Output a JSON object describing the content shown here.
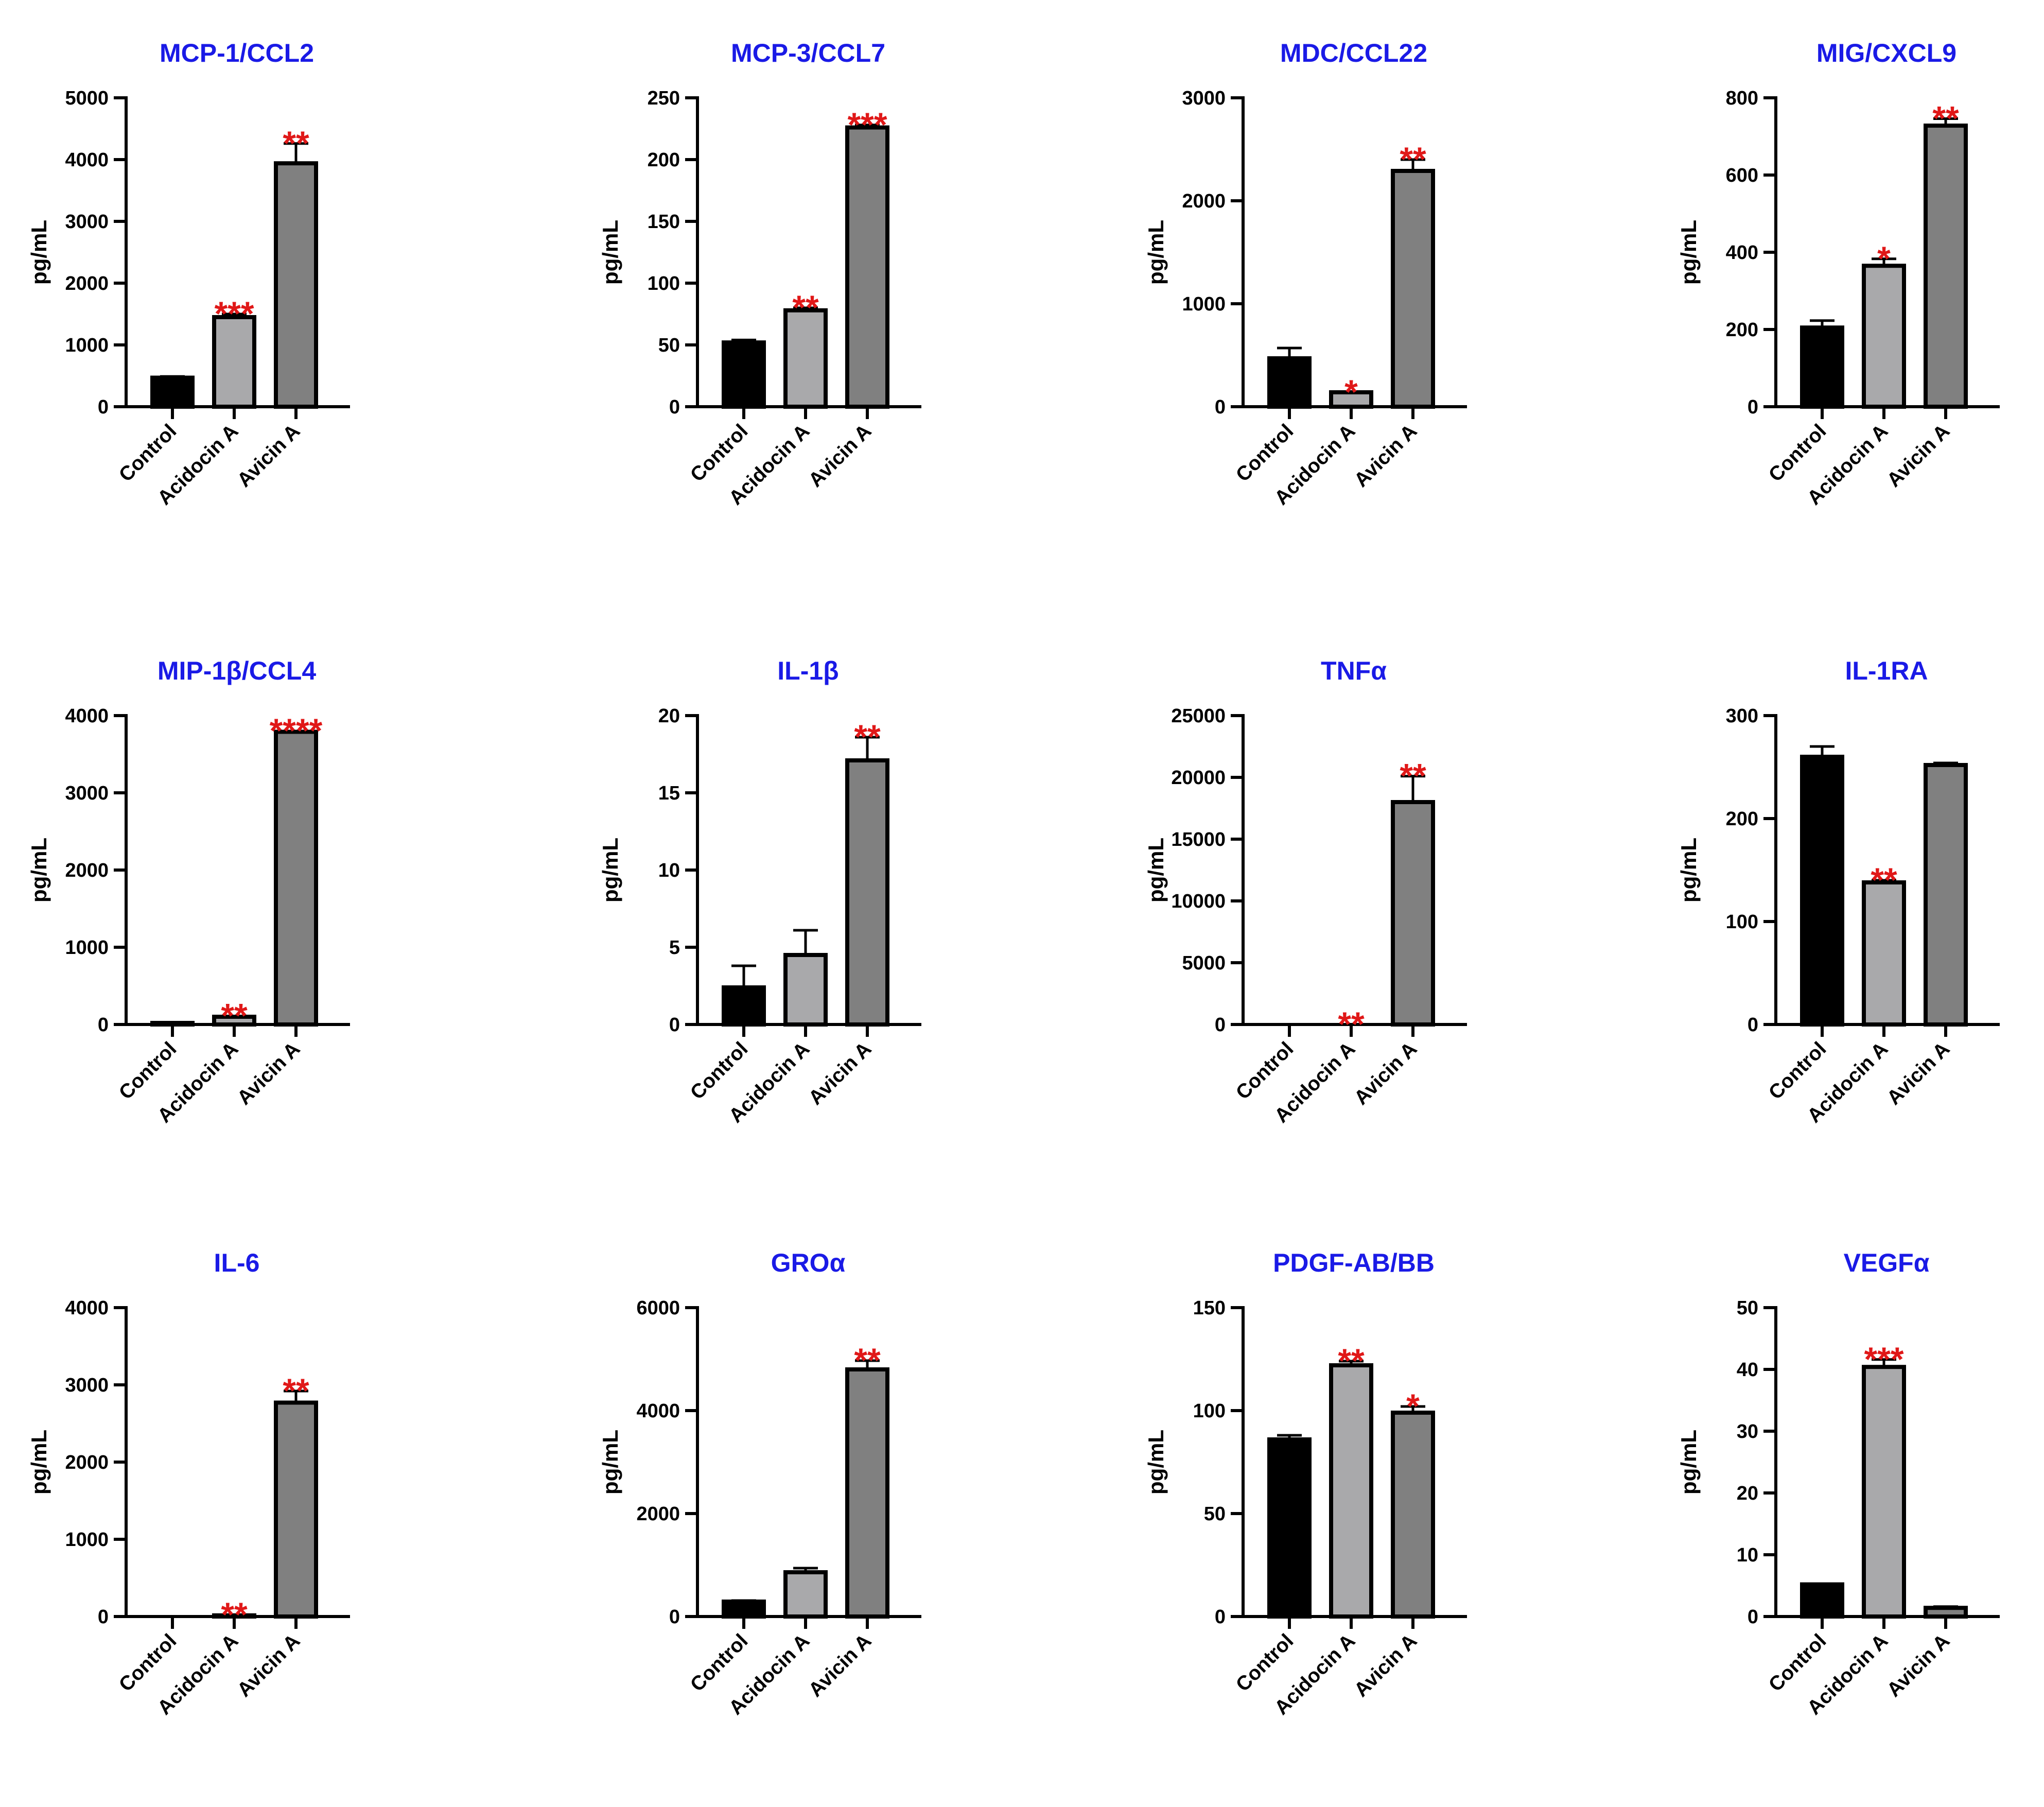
{
  "colors": {
    "title": "#1a1ae6",
    "significance": "#e01818",
    "axis": "#000000",
    "bar_control": "#000000",
    "bar_acidocin": "#a9a9ab",
    "bar_avicin": "#808080"
  },
  "chart_data": [
    {
      "type": "bar",
      "title": "MCP-1/CCL2",
      "ylabel": "pg/mL",
      "categories": [
        "Control",
        "Acidocin A",
        "Avicin A"
      ],
      "values": [
        470,
        1450,
        3940
      ],
      "errors": [
        20,
        50,
        320
      ],
      "significance": [
        "",
        "***",
        "**"
      ],
      "ylim": [
        0,
        5000
      ],
      "yticks": [
        0,
        1000,
        2000,
        3000,
        4000,
        5000
      ]
    },
    {
      "type": "bar",
      "title": "MCP-3/CCL7",
      "ylabel": "pg/mL",
      "categories": [
        "Control",
        "Acidocin A",
        "Avicin A"
      ],
      "values": [
        52,
        78,
        226
      ],
      "errors": [
        2,
        2,
        2
      ],
      "significance": [
        "",
        "**",
        "***"
      ],
      "ylim": [
        0,
        250
      ],
      "yticks": [
        0,
        50,
        100,
        150,
        200,
        250
      ]
    },
    {
      "type": "bar",
      "title": "MDC/CCL22",
      "ylabel": "pg/mL",
      "categories": [
        "Control",
        "Acidocin A",
        "Avicin A"
      ],
      "values": [
        470,
        140,
        2290
      ],
      "errors": [
        100,
        0,
        110
      ],
      "significance": [
        "",
        "*",
        "**"
      ],
      "ylim": [
        0,
        3000
      ],
      "yticks": [
        0,
        1000,
        2000,
        3000
      ]
    },
    {
      "type": "bar",
      "title": "MIG/CXCL9",
      "ylabel": "pg/mL",
      "categories": [
        "Control",
        "Acidocin A",
        "Avicin A"
      ],
      "values": [
        205,
        365,
        728
      ],
      "errors": [
        18,
        18,
        18
      ],
      "significance": [
        "",
        "*",
        "**"
      ],
      "ylim": [
        0,
        800
      ],
      "yticks": [
        0,
        200,
        400,
        600,
        800
      ]
    },
    {
      "type": "bar",
      "title": "MIP-1β/CCL4",
      "ylabel": "pg/mL",
      "categories": [
        "Control",
        "Acidocin A",
        "Avicin A"
      ],
      "values": [
        20,
        100,
        3790
      ],
      "errors": [
        5,
        10,
        10
      ],
      "significance": [
        "",
        "**",
        "****"
      ],
      "ylim": [
        0,
        4000
      ],
      "yticks": [
        0,
        1000,
        2000,
        3000,
        4000
      ]
    },
    {
      "type": "bar",
      "title": "IL-1β",
      "ylabel": "pg/mL",
      "categories": [
        "Control",
        "Acidocin A",
        "Avicin A"
      ],
      "values": [
        2.4,
        4.5,
        17.1
      ],
      "errors": [
        1.4,
        1.6,
        1.5
      ],
      "significance": [
        "",
        "",
        "**"
      ],
      "ylim": [
        0,
        20
      ],
      "yticks": [
        0,
        5,
        10,
        15,
        20
      ]
    },
    {
      "type": "bar",
      "title": "TNFα",
      "ylabel": "pg/mL",
      "categories": [
        "Control",
        "Acidocin A",
        "Avicin A"
      ],
      "values": [
        0,
        0,
        18000
      ],
      "errors": [
        0,
        0,
        2100
      ],
      "significance": [
        "",
        "**",
        "**"
      ],
      "ylim": [
        0,
        25000
      ],
      "yticks": [
        0,
        5000,
        10000,
        15000,
        20000,
        25000
      ]
    },
    {
      "type": "bar",
      "title": "IL-1RA",
      "ylabel": "pg/mL",
      "categories": [
        "Control",
        "Acidocin A",
        "Avicin A"
      ],
      "values": [
        260,
        138,
        252
      ],
      "errors": [
        10,
        2,
        2
      ],
      "significance": [
        "",
        "**",
        ""
      ],
      "ylim": [
        0,
        300
      ],
      "yticks": [
        0,
        100,
        200,
        300
      ]
    },
    {
      "type": "bar",
      "title": "IL-6",
      "ylabel": "pg/mL",
      "categories": [
        "Control",
        "Acidocin A",
        "Avicin A"
      ],
      "values": [
        0,
        15,
        2770
      ],
      "errors": [
        0,
        5,
        150
      ],
      "significance": [
        "",
        "**",
        "**"
      ],
      "ylim": [
        0,
        4000
      ],
      "yticks": [
        0,
        1000,
        2000,
        3000,
        4000
      ]
    },
    {
      "type": "bar",
      "title": "GROα",
      "ylabel": "pg/mL",
      "categories": [
        "Control",
        "Acidocin A",
        "Avicin A"
      ],
      "values": [
        290,
        860,
        4800
      ],
      "errors": [
        20,
        80,
        170
      ],
      "significance": [
        "",
        "",
        "**"
      ],
      "ylim": [
        0,
        6000
      ],
      "yticks": [
        0,
        2000,
        4000,
        6000
      ]
    },
    {
      "type": "bar",
      "title": "PDGF-AB/BB",
      "ylabel": "pg/mL",
      "categories": [
        "Control",
        "Acidocin A",
        "Avicin A"
      ],
      "values": [
        86,
        122,
        99
      ],
      "errors": [
        2,
        2,
        3
      ],
      "significance": [
        "",
        "**",
        "*"
      ],
      "ylim": [
        0,
        150
      ],
      "yticks": [
        0,
        50,
        100,
        150
      ]
    },
    {
      "type": "bar",
      "title": "VEGFα",
      "ylabel": "pg/mL",
      "categories": [
        "Control",
        "Acidocin A",
        "Avicin A"
      ],
      "values": [
        5.2,
        40.4,
        1.4
      ],
      "errors": [
        0,
        1.2,
        0.2
      ],
      "significance": [
        "",
        "***",
        ""
      ],
      "ylim": [
        0,
        50
      ],
      "yticks": [
        0,
        10,
        20,
        30,
        40,
        50
      ]
    }
  ]
}
